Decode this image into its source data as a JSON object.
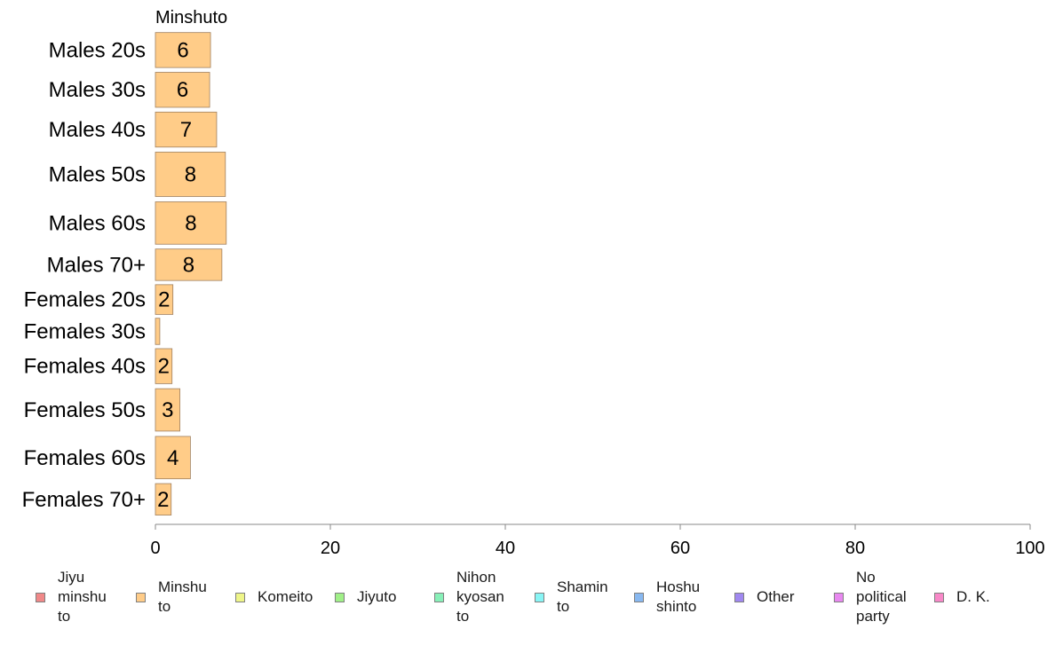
{
  "chart_data": {
    "type": "bar",
    "orientation": "horizontal",
    "facet_title": "Minshuto",
    "categories": [
      "Males 20s",
      "Males 30s",
      "Males 40s",
      "Males 50s",
      "Males 60s",
      "Males 70+",
      "Females 20s",
      "Females 30s",
      "Females 40s",
      "Females 50s",
      "Females 60s",
      "Females 70+"
    ],
    "series": [
      {
        "name": "Minshu to",
        "color": "#FFCC88",
        "values": [
          6.3,
          6.2,
          7.0,
          8.0,
          8.1,
          7.6,
          2.0,
          0.5,
          1.9,
          2.8,
          4.0,
          1.8
        ],
        "labels": [
          "6",
          "6",
          "7",
          "8",
          "8",
          "8",
          "2",
          "",
          "2",
          "3",
          "4",
          "2"
        ]
      }
    ],
    "group_weights": [
      1.0,
      1.0,
      1.0,
      1.25,
      1.2,
      0.9,
      0.85,
      0.75,
      1.0,
      1.2,
      1.2,
      0.9
    ],
    "xlim": [
      0,
      100
    ],
    "xticks": [
      0,
      20,
      40,
      60,
      80,
      100
    ],
    "grid": false
  },
  "legend": [
    {
      "label": "Jiyu\nminshu\nto",
      "color": "#F08888"
    },
    {
      "label": "Minshu\nto",
      "color": "#FFCC88"
    },
    {
      "label": "Komeito",
      "color": "#EEF588"
    },
    {
      "label": "Jiyuto",
      "color": "#A0F088"
    },
    {
      "label": "Nihon\nkyosan\nto",
      "color": "#88F0B8"
    },
    {
      "label": "Shamin\nto",
      "color": "#88F5F5"
    },
    {
      "label": "Hoshu\nshinto",
      "color": "#88B8F0"
    },
    {
      "label": "Other",
      "color": "#A088F0"
    },
    {
      "label": "No\npolitical\nparty",
      "color": "#E888F0"
    },
    {
      "label": "D. K.",
      "color": "#F888C8"
    }
  ]
}
